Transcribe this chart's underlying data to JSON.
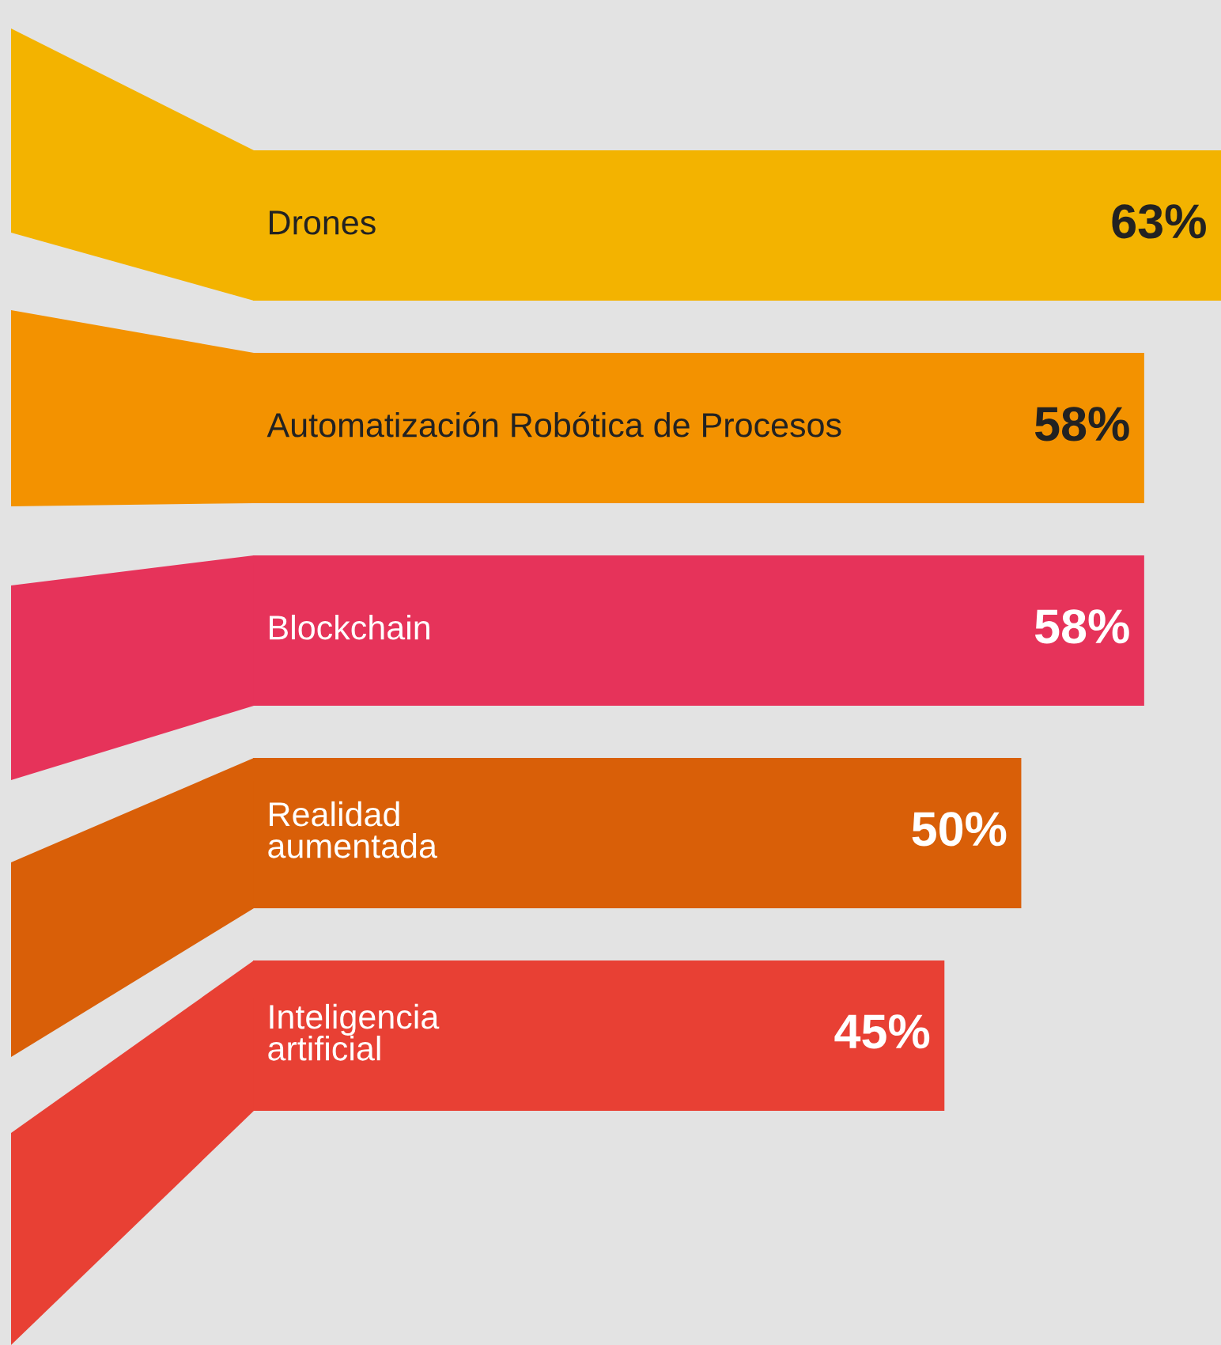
{
  "chart_data": {
    "type": "bar",
    "orientation": "horizontal",
    "categories": [
      "Drones",
      "Automatización Robótica de Procesos",
      "Blockchain",
      "Realidad\naumentada",
      "Inteligencia\nartificial"
    ],
    "values": [
      63,
      58,
      58,
      50,
      45
    ],
    "colors": [
      "#f3b300",
      "#f39200",
      "#e6335a",
      "#d95f08",
      "#e84034"
    ],
    "value_labels": [
      "63%",
      "58%",
      "58%",
      "50%",
      "45%"
    ]
  }
}
